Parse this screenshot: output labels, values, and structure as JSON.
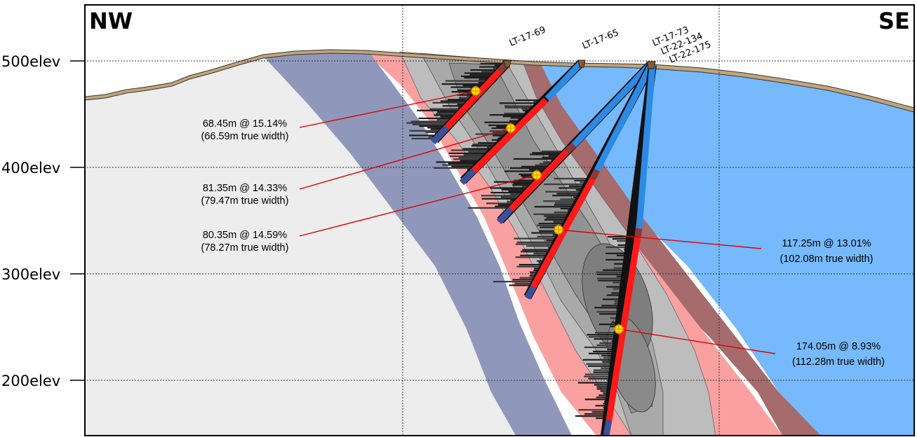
{
  "corners": {
    "left": "NW",
    "right": "SE"
  },
  "elevation_labels": [
    "500elev",
    "400elev",
    "300elev",
    "200elev"
  ],
  "drill_holes": [
    {
      "name": "LT-17-69"
    },
    {
      "name": "LT-17-65"
    },
    {
      "name": "LT-17-73"
    },
    {
      "name": "LT-22-134"
    },
    {
      "name": "LT-22-175"
    }
  ],
  "intercepts": [
    {
      "line1": "68.45m @ 15.14%",
      "line2": "(66.59m true width)"
    },
    {
      "line1": "81.35m @ 14.33%",
      "line2": "(79.47m true width)"
    },
    {
      "line1": "80.35m @ 14.59%",
      "line2": "(78.27m true width)"
    },
    {
      "line1": "117.25m @ 13.01%",
      "line2": "(102.08m true width)"
    },
    {
      "line1": "174.05m @ 8.93%",
      "line2": "(112.28m true width)"
    }
  ],
  "colors": {
    "host_rock_light": "#ededed",
    "host_rock_blue": "#76b9fc",
    "slate_unit": "#8f98bb",
    "pink_zone": "#fba0a0",
    "brown_zone": "#a66b6d",
    "drill_hole_blue": "#2d8ae4",
    "mineralized_red": "#ff1a1a",
    "tail_dark_blue": "#3c4f9a",
    "intercept_marker": "#ffe000",
    "overburden": "#c3a57c"
  }
}
